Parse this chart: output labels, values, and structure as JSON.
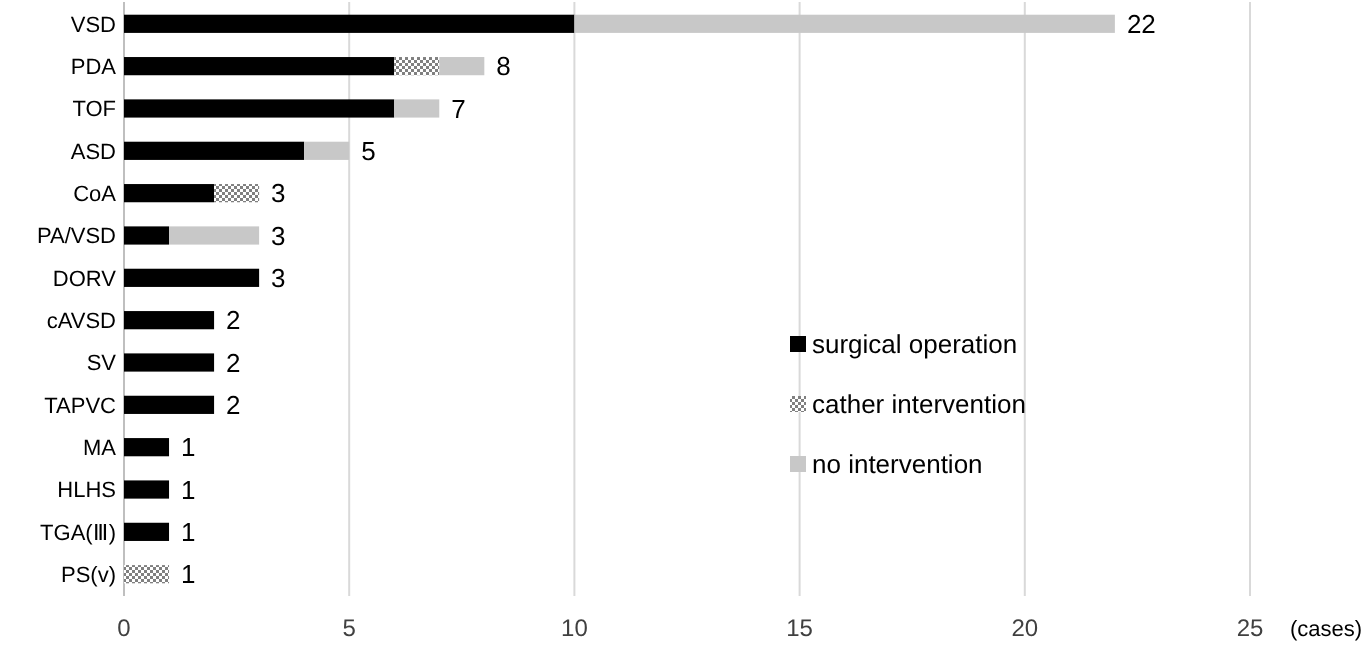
{
  "chart_data": {
    "type": "bar",
    "orientation": "horizontal",
    "stacked": true,
    "xlabel": "(cases)",
    "categories": [
      "VSD",
      "PDA",
      "TOF",
      "ASD",
      "CoA",
      "PA/VSD",
      "DORV",
      "cAVSD",
      "SV",
      "TAPVC",
      "MA",
      "HLHS",
      "TGA(Ⅲ)",
      "PS(v)"
    ],
    "series": [
      {
        "name": "surgical operation",
        "color": "#000000",
        "values": [
          10,
          6,
          6,
          4,
          2,
          1,
          3,
          2,
          2,
          2,
          1,
          1,
          1,
          0
        ]
      },
      {
        "name": "cather intervention",
        "color": "#808080",
        "values": [
          0,
          1,
          0,
          0,
          1,
          0,
          0,
          0,
          0,
          0,
          0,
          0,
          0,
          1
        ]
      },
      {
        "name": "no intervention",
        "color": "#c8c8c8",
        "values": [
          12,
          1,
          1,
          1,
          0,
          2,
          0,
          0,
          0,
          0,
          0,
          0,
          0,
          0
        ]
      }
    ],
    "totals": [
      "22",
      "8",
      "7",
      "5",
      "3",
      "3",
      "3",
      "2",
      "2",
      "2",
      "1",
      "1",
      "1",
      "1"
    ],
    "xlim": [
      0,
      25
    ],
    "xticks": [
      0,
      5,
      10,
      15,
      20,
      25
    ],
    "grid": "x",
    "legend": "right"
  }
}
